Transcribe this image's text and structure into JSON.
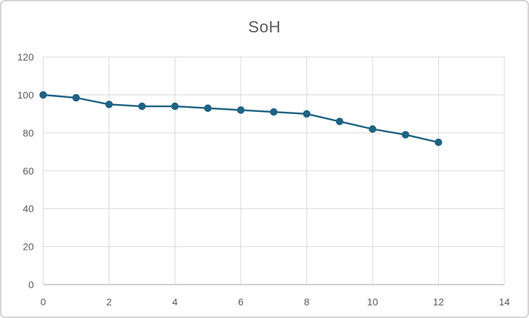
{
  "chart_data": {
    "type": "line",
    "title": "SoH",
    "x": [
      0,
      1,
      2,
      3,
      4,
      5,
      6,
      7,
      8,
      9,
      10,
      11,
      12
    ],
    "values": [
      100,
      98.5,
      95,
      94,
      94,
      93,
      92,
      91,
      90,
      86,
      82,
      79,
      75
    ],
    "xlabel": "",
    "ylabel": "",
    "xlim": [
      0,
      14
    ],
    "ylim": [
      0,
      120
    ],
    "x_ticks": [
      0,
      2,
      4,
      6,
      8,
      10,
      12,
      14
    ],
    "y_ticks": [
      0,
      20,
      40,
      60,
      80,
      100,
      120
    ],
    "grid": true,
    "legend_position": "none",
    "marker": "circle",
    "colors": {
      "series": "#1f6384",
      "gridline": "#d9d9d9",
      "axis_line": "#bfbfbf",
      "tick_label": "#595959",
      "title": "#595959",
      "background": "#ffffff",
      "frame_border": "#d5d3d3"
    }
  }
}
